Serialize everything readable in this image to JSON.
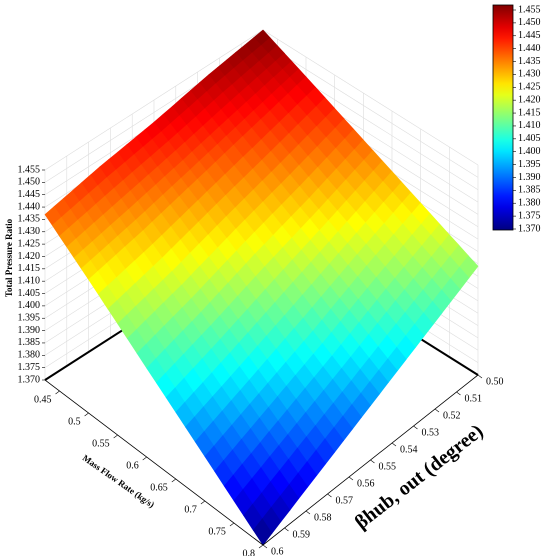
{
  "chart_data": {
    "type": "surface3d",
    "z_label": "Total Pressure Ratio",
    "x_label": "Mass Flow Rate (kg/s)",
    "y_label": "βhub, out (degree)",
    "x": [
      0.425,
      0.5,
      0.6,
      0.7,
      0.8
    ],
    "y": [
      0.5,
      0.525,
      0.55,
      0.575,
      0.6
    ],
    "z": [
      [
        1.455,
        1.451,
        1.446,
        1.442,
        1.437
      ],
      [
        1.447,
        1.441,
        1.435,
        1.429,
        1.424
      ],
      [
        1.436,
        1.428,
        1.421,
        1.413,
        1.406
      ],
      [
        1.425,
        1.416,
        1.406,
        1.397,
        1.388
      ],
      [
        1.414,
        1.403,
        1.392,
        1.381,
        1.37
      ]
    ],
    "xlim": [
      0.425,
      0.8
    ],
    "ylim": [
      0.5,
      0.6
    ],
    "zlim": [
      1.37,
      1.455
    ],
    "xticks": [
      0.45,
      0.5,
      0.55,
      0.6,
      0.65,
      0.7,
      0.75,
      0.8
    ],
    "yticks": [
      {
        "value": 0.5,
        "label": "0.50"
      },
      0.51,
      0.52,
      0.53,
      0.54,
      0.55,
      0.56,
      0.57,
      0.58,
      0.59,
      0.6
    ],
    "zticks": [
      {
        "value": 1.37,
        "label": "1.370"
      },
      1.375,
      {
        "value": 1.38,
        "label": "1.380"
      },
      1.385,
      {
        "value": 1.39,
        "label": "1.390"
      },
      1.395,
      {
        "value": 1.4,
        "label": "1.400"
      },
      1.405,
      {
        "value": 1.41,
        "label": "1.410"
      },
      1.415,
      {
        "value": 1.42,
        "label": "1.420"
      },
      1.425,
      {
        "value": 1.43,
        "label": "1.430"
      },
      1.435,
      {
        "value": 1.44,
        "label": "1.440"
      },
      1.445,
      {
        "value": 1.45,
        "label": "1.450"
      },
      1.455
    ],
    "colormap": "jet",
    "colorbar": true,
    "grid": true
  }
}
